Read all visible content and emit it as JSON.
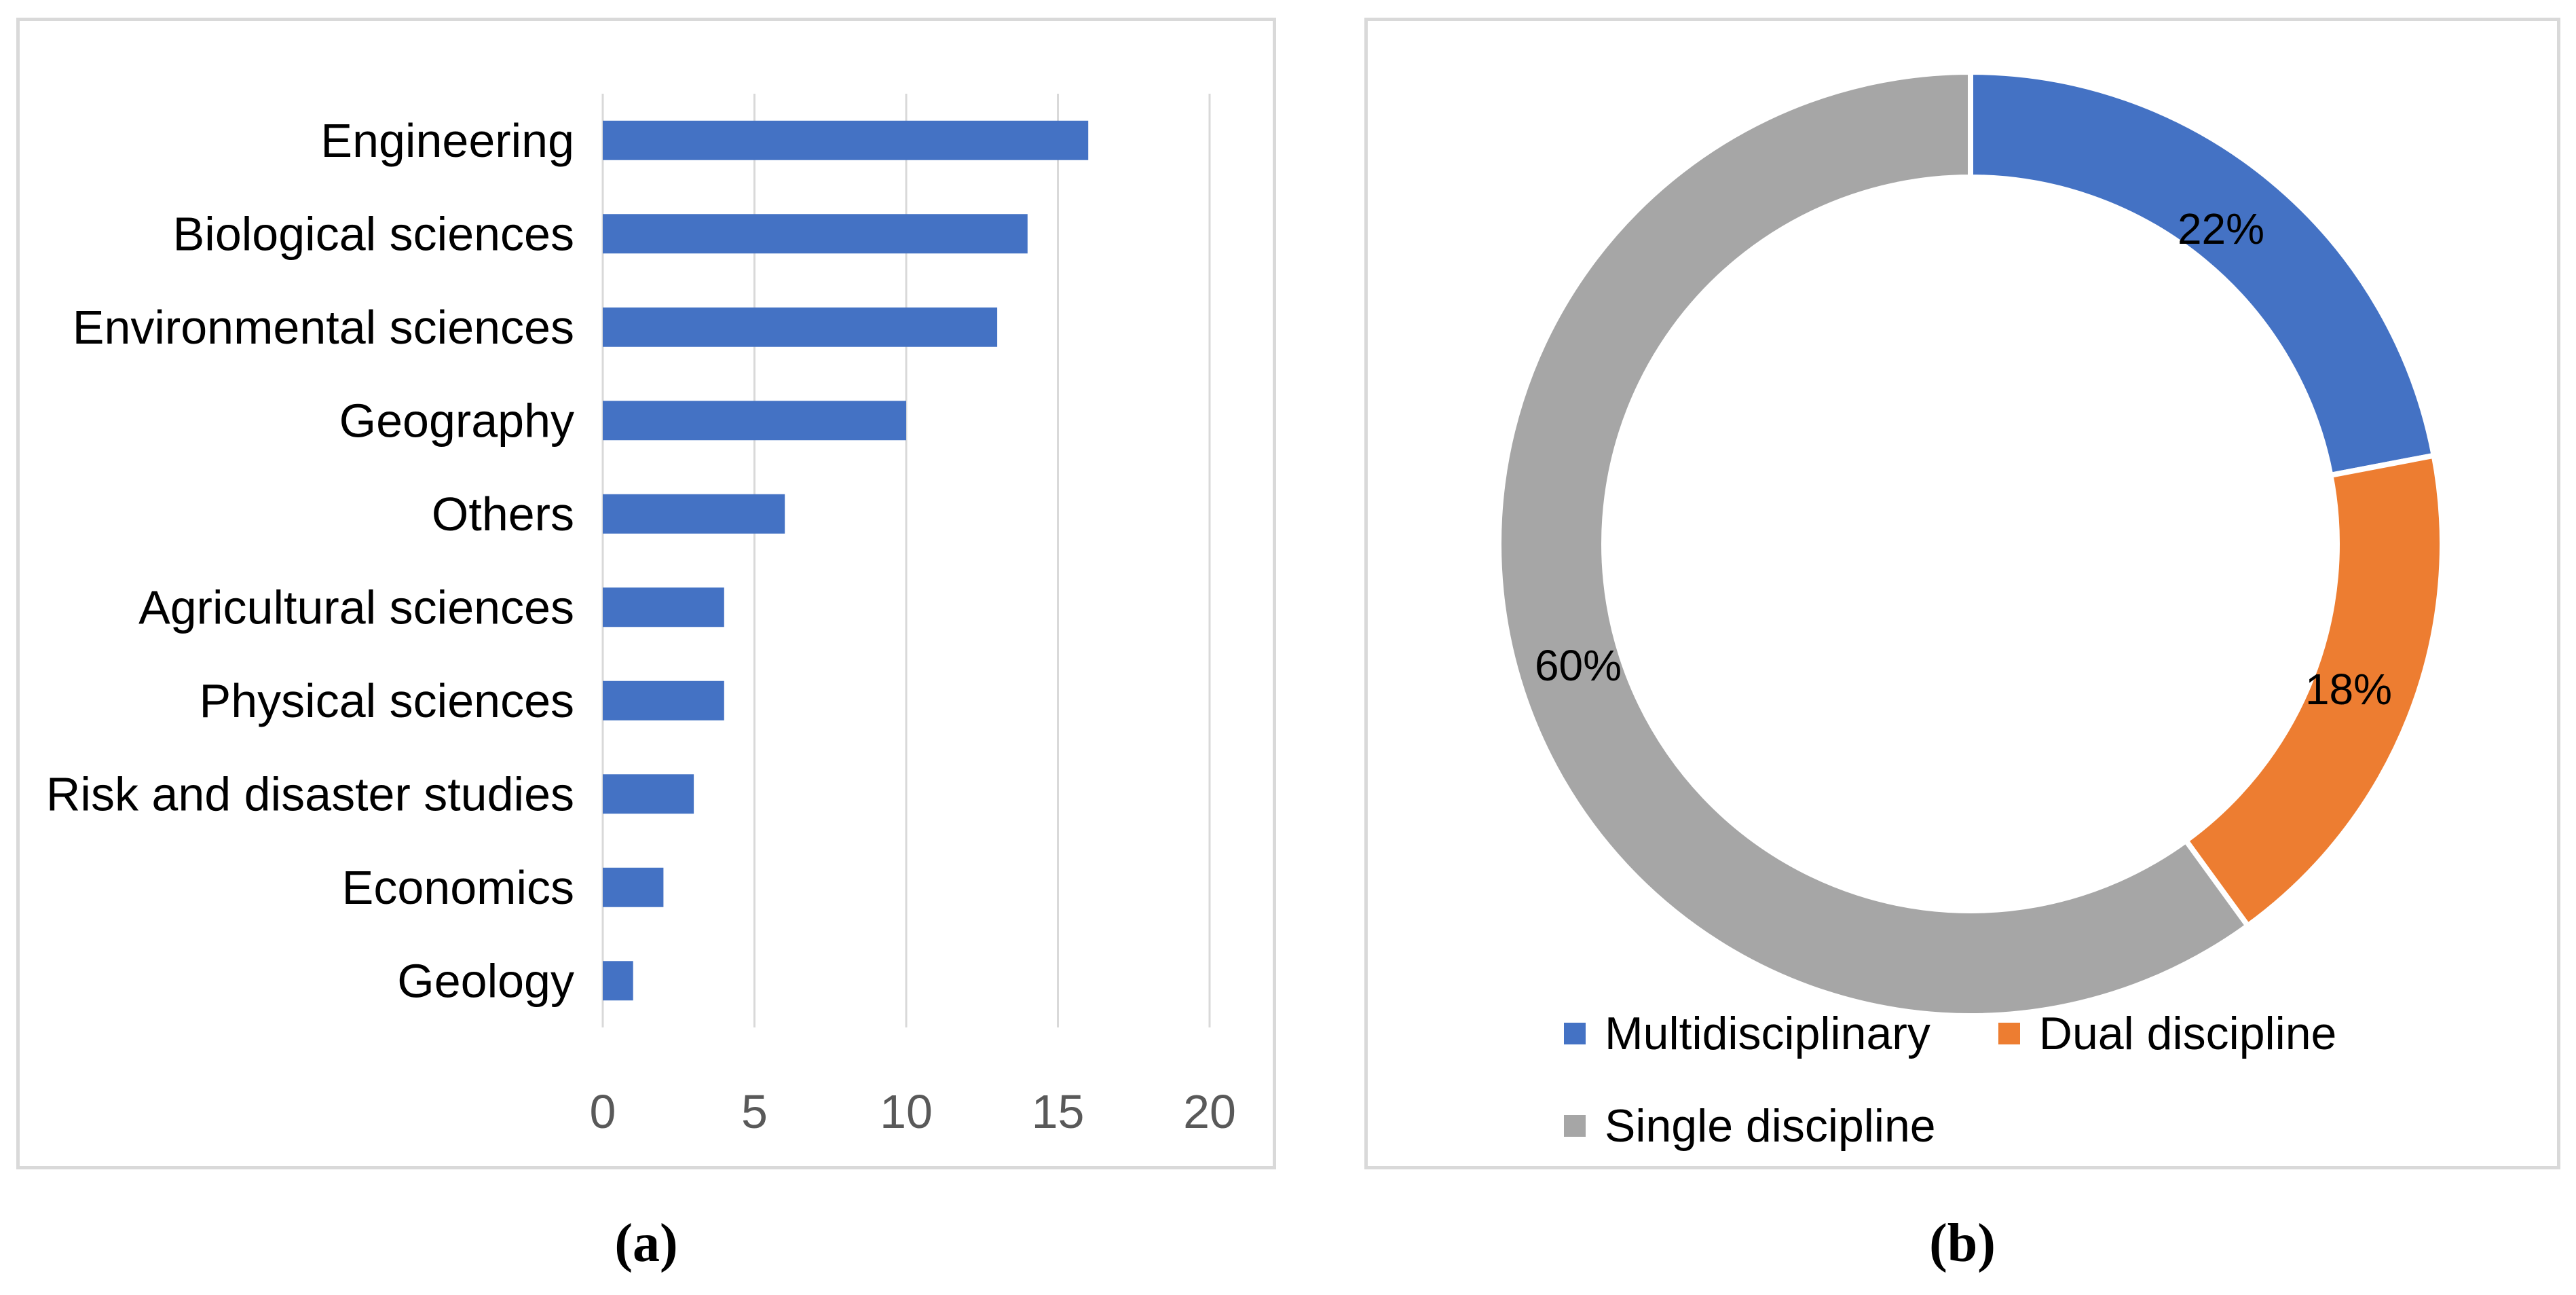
{
  "figure": {
    "caption_a": "(a)",
    "caption_b": "(b)"
  },
  "colors": {
    "blue": "#4472C4",
    "orange": "#ED7D31",
    "gray": "#A6A6A6",
    "gridline": "#D9D9D9",
    "tick_label": "#595959",
    "category_label": "#000000",
    "panel_border": "#D9D9D9"
  },
  "chart_data": [
    {
      "type": "bar",
      "orientation": "horizontal",
      "title": "",
      "xlabel": "",
      "ylabel": "",
      "categories": [
        "Engineering",
        "Biological sciences",
        "Environmental sciences",
        "Geography",
        "Others",
        "Agricultural sciences",
        "Physical sciences",
        "Risk and disaster studies",
        "Economics",
        "Geology"
      ],
      "values": [
        16,
        14,
        13,
        10,
        6,
        4,
        4,
        3,
        2,
        1
      ],
      "xlim": [
        0,
        20
      ],
      "xticks": [
        0,
        5,
        10,
        15,
        20
      ],
      "grid": true,
      "legend": "none",
      "bar_color": "#4472C4"
    },
    {
      "type": "pie",
      "subtype": "donut",
      "title": "",
      "start_angle_deg": 0,
      "direction": "clockwise",
      "legend_position": "bottom",
      "segments": [
        {
          "label": "Multidisciplinary",
          "value": 22,
          "pct_label": "22%",
          "color": "#4472C4"
        },
        {
          "label": "Dual discipline",
          "value": 18,
          "pct_label": "18%",
          "color": "#ED7D31"
        },
        {
          "label": "Single discipline",
          "value": 60,
          "pct_label": "60%",
          "color": "#A6A6A6"
        }
      ]
    }
  ]
}
